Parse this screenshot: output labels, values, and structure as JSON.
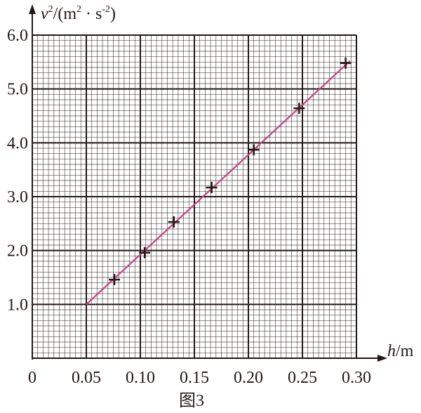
{
  "chart_data": {
    "type": "scatter",
    "title": "",
    "caption": "图3",
    "xlabel": "h/m",
    "xlabel_var": "h",
    "xlabel_unit": "/m",
    "ylabel_var": "v",
    "ylabel_sup": "2",
    "ylabel_unit_open": "/(m",
    "ylabel_unit_sup1": "2",
    "ylabel_unit_mid": " · s",
    "ylabel_unit_sup2": "-2",
    "ylabel_unit_close": ")",
    "xlim": [
      0,
      0.3
    ],
    "ylim": [
      0,
      6.0
    ],
    "xticks": [
      "0",
      "0.05",
      "0.10",
      "0.15",
      "0.20",
      "0.25",
      "0.30"
    ],
    "yticks": [
      "1.0",
      "2.0",
      "3.0",
      "4.0",
      "5.0",
      "6.0"
    ],
    "grid": {
      "major_x": 0.05,
      "minor_x": 0.005,
      "major_y": 1.0,
      "minor_y": 0.1
    },
    "points": [
      {
        "x": 0.076,
        "y": 1.46
      },
      {
        "x": 0.104,
        "y": 1.96
      },
      {
        "x": 0.131,
        "y": 2.53
      },
      {
        "x": 0.166,
        "y": 3.17
      },
      {
        "x": 0.205,
        "y": 3.87
      },
      {
        "x": 0.247,
        "y": 4.64
      },
      {
        "x": 0.29,
        "y": 5.48
      }
    ],
    "fit_line": {
      "from": [
        0.05,
        1.0
      ],
      "to": [
        0.294,
        5.52
      ],
      "color": "#c8407f"
    },
    "marker_color": "#231815",
    "grid_color": "#231815"
  }
}
